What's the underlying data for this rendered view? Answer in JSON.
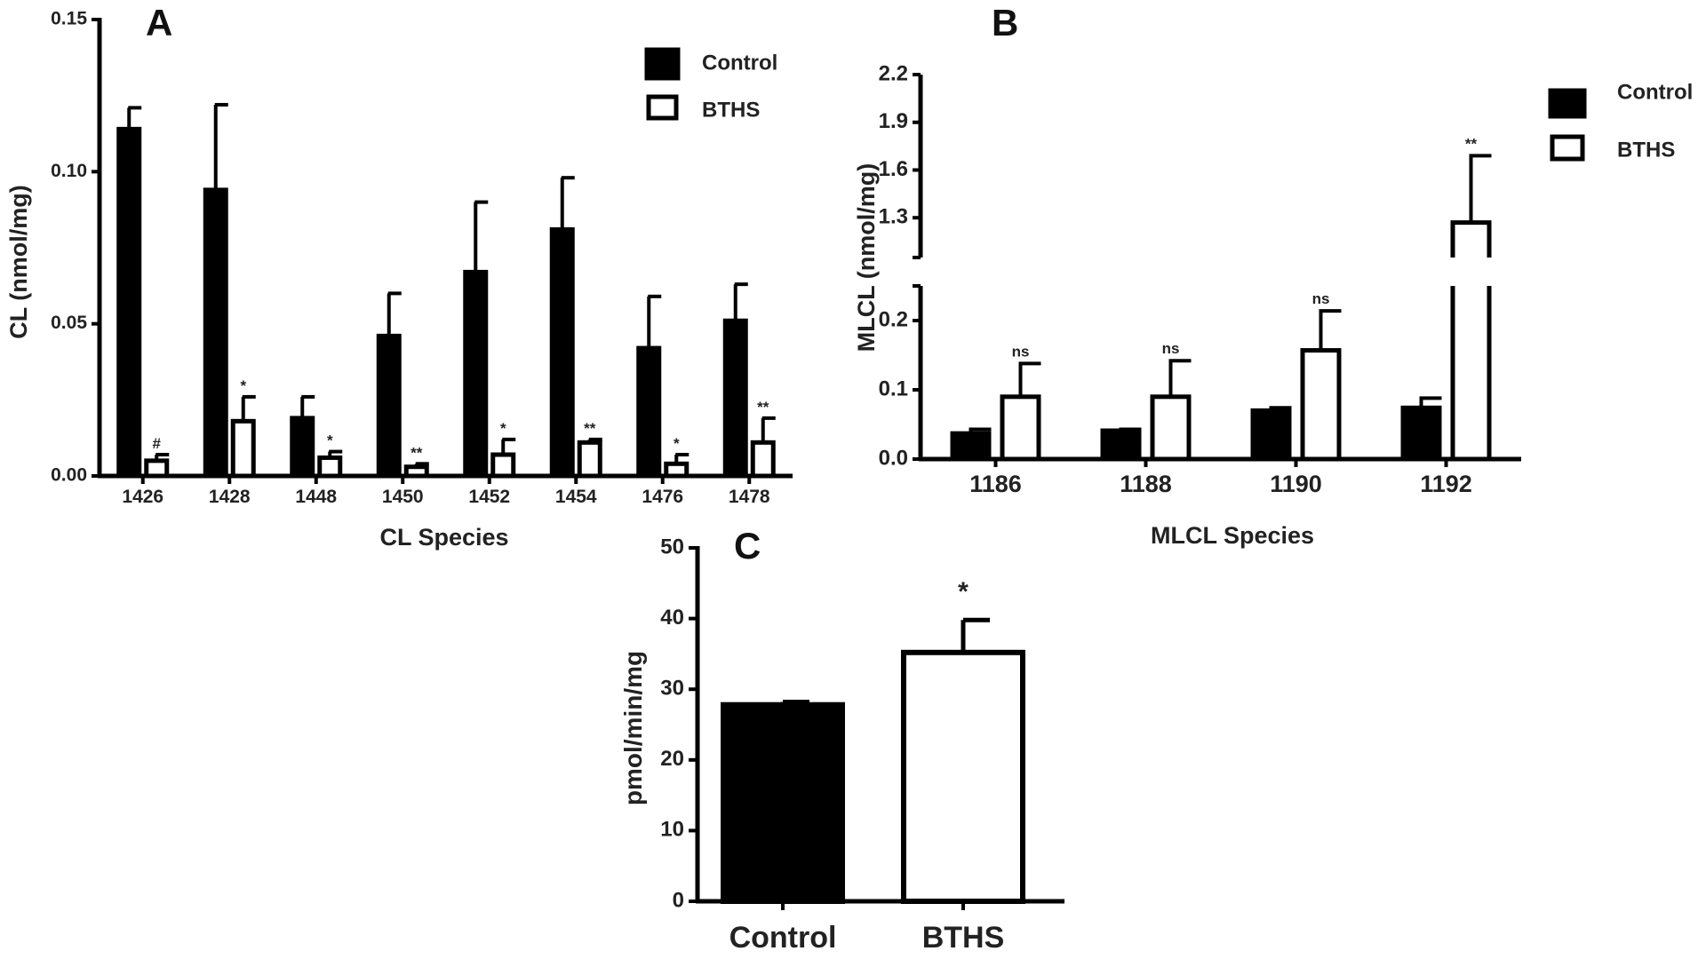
{
  "chart_data": [
    {
      "panel": "A",
      "type": "bar",
      "ylabel": "CL (nmol/mg)",
      "xlabel": "CL Species",
      "ylim": [
        0,
        0.15
      ],
      "yticks": [
        "0.00",
        "0.05",
        "0.10",
        "0.15"
      ],
      "ytick_values": [
        0,
        0.05,
        0.1,
        0.15
      ],
      "categories": [
        "1426",
        "1428",
        "1448",
        "1450",
        "1452",
        "1454",
        "1476",
        "1478"
      ],
      "series": [
        {
          "name": "Control",
          "color": "#000000",
          "values": [
            0.114,
            0.094,
            0.019,
            0.046,
            0.067,
            0.081,
            0.042,
            0.051
          ],
          "errors": [
            0.007,
            0.028,
            0.007,
            0.014,
            0.023,
            0.017,
            0.017,
            0.012
          ]
        },
        {
          "name": "BTHS",
          "color": "#ffffff",
          "values": [
            0.005,
            0.018,
            0.006,
            0.003,
            0.007,
            0.011,
            0.004,
            0.011
          ],
          "errors": [
            0.002,
            0.008,
            0.002,
            0.001,
            0.005,
            0.001,
            0.003,
            0.008
          ]
        }
      ],
      "significance": [
        "#",
        "*",
        "*",
        "**",
        "*",
        "**",
        "*",
        "**"
      ],
      "legend": [
        "Control",
        "BTHS"
      ]
    },
    {
      "panel": "B",
      "type": "bar",
      "ylabel": "MLCL (nmol/mg)",
      "xlabel": "MLCL Species",
      "axis_break": true,
      "ylim_lower": [
        0,
        0.25
      ],
      "ylim_upper": [
        1.05,
        2.2
      ],
      "yticks_lower": [
        "0.0",
        "0.1",
        "0.2"
      ],
      "ytick_values_lower": [
        0,
        0.1,
        0.2
      ],
      "yticks_upper": [
        "1.3",
        "1.6",
        "1.9",
        "2.2"
      ],
      "ytick_values_upper": [
        1.3,
        1.6,
        1.9,
        2.2
      ],
      "categories": [
        "1186",
        "1188",
        "1190",
        "1192"
      ],
      "series": [
        {
          "name": "Control",
          "color": "#000000",
          "values": [
            0.037,
            0.041,
            0.07,
            0.074
          ],
          "errors": [
            0.006,
            0.002,
            0.004,
            0.014
          ]
        },
        {
          "name": "BTHS",
          "color": "#ffffff",
          "values": [
            0.09,
            0.09,
            0.157,
            1.27
          ],
          "errors": [
            0.048,
            0.052,
            0.057,
            0.42
          ]
        }
      ],
      "significance": [
        "ns",
        "ns",
        "ns",
        "**"
      ],
      "legend": [
        "Control",
        "BTHS"
      ]
    },
    {
      "panel": "C",
      "type": "bar",
      "ylabel": "pmol/min/mg",
      "ylim": [
        0,
        50
      ],
      "yticks": [
        "0",
        "10",
        "20",
        "30",
        "40",
        "50"
      ],
      "ytick_values": [
        0,
        10,
        20,
        30,
        40,
        50
      ],
      "categories": [
        "Control",
        "BTHS"
      ],
      "values": [
        27.8,
        35.2
      ],
      "errors": [
        0.4,
        4.6
      ],
      "colors": [
        "#000000",
        "#ffffff"
      ],
      "significance": [
        "",
        "*"
      ]
    }
  ]
}
